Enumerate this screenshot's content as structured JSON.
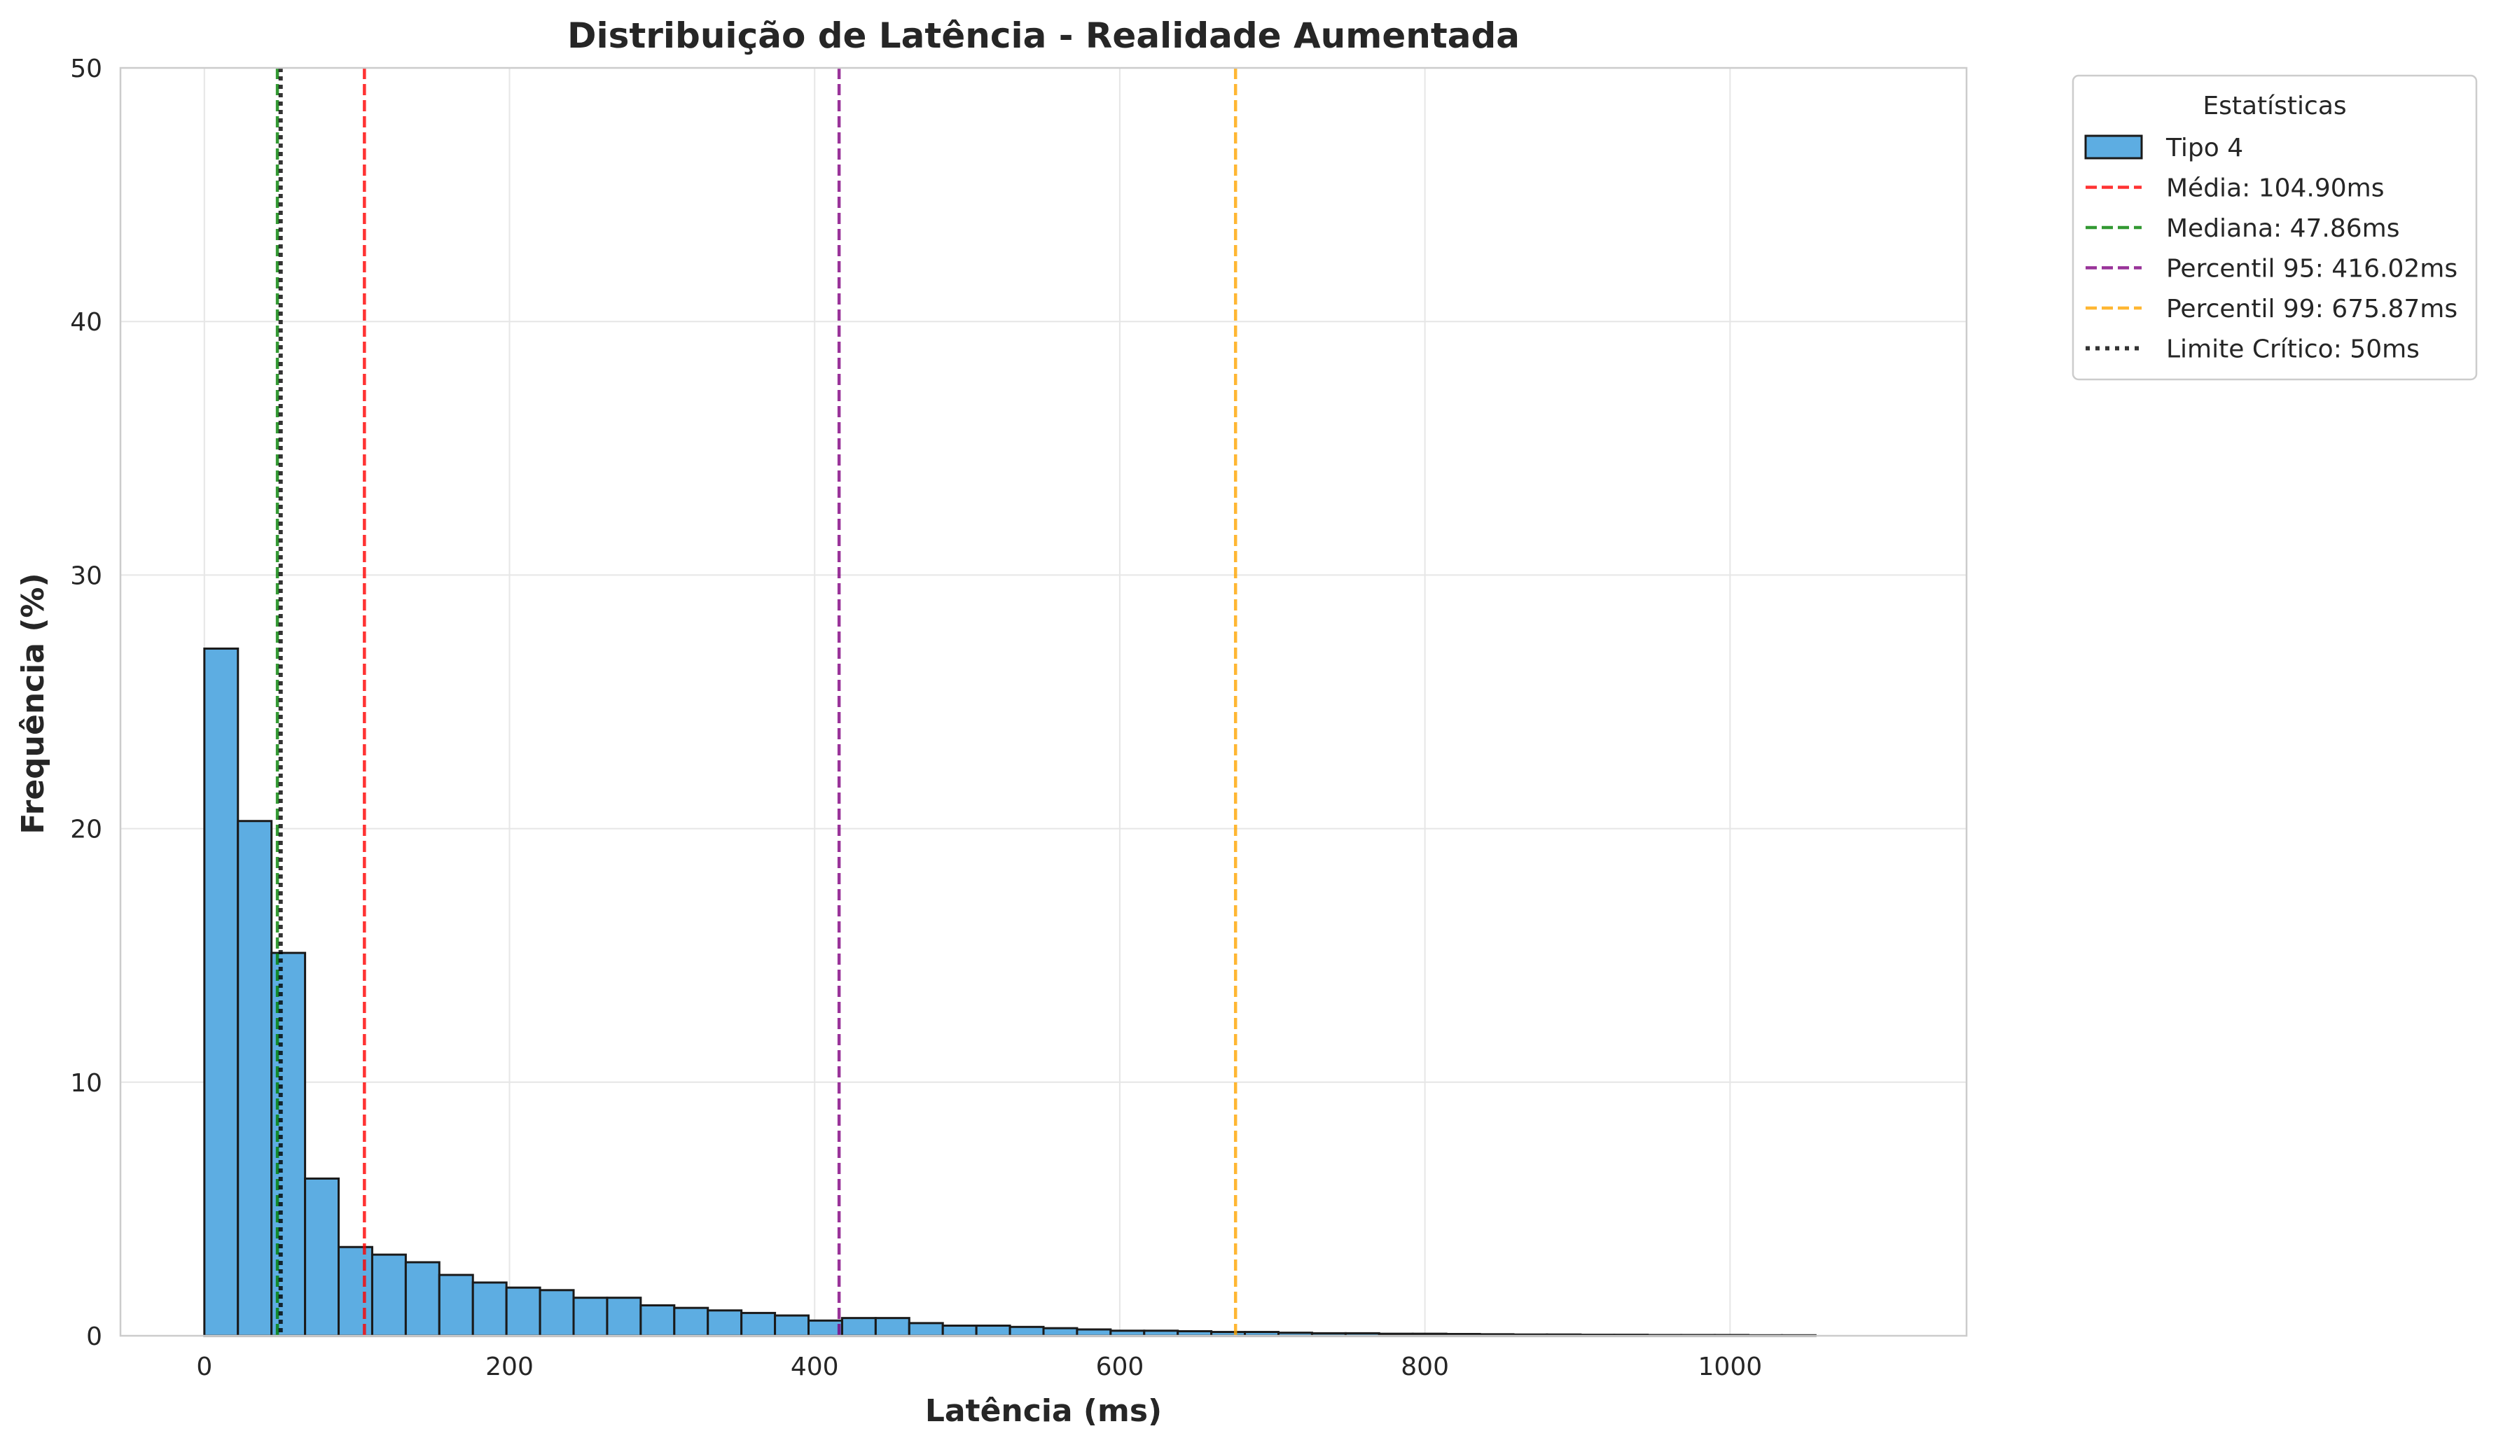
{
  "chart_data": {
    "type": "bar",
    "title": "Distribuição de Latência - Realidade Aumentada",
    "xlabel": "Latência (ms)",
    "ylabel": "Frequência (%)",
    "xlim": [
      -55,
      1155
    ],
    "ylim": [
      0,
      50
    ],
    "x_ticks": [
      0,
      200,
      400,
      600,
      800,
      1000
    ],
    "y_ticks": [
      0,
      10,
      20,
      30,
      40,
      50
    ],
    "grid": true,
    "bin_width": 22,
    "bin_start": 0,
    "series": [
      {
        "name": "Tipo 4",
        "color": "#5dade2",
        "values": [
          27.1,
          20.3,
          15.1,
          6.2,
          3.5,
          3.2,
          2.9,
          2.4,
          2.1,
          1.9,
          1.8,
          1.5,
          1.5,
          1.2,
          1.1,
          1.0,
          0.9,
          0.8,
          0.6,
          0.7,
          0.7,
          0.5,
          0.4,
          0.4,
          0.35,
          0.3,
          0.25,
          0.2,
          0.2,
          0.18,
          0.15,
          0.15,
          0.12,
          0.1,
          0.1,
          0.08,
          0.08,
          0.07,
          0.06,
          0.05,
          0.05,
          0.04,
          0.04,
          0.03,
          0.03,
          0.03,
          0.02,
          0.02
        ]
      }
    ],
    "lines": [
      {
        "label": "Média: 104.90ms",
        "x": 104.9,
        "color": "#ff0000",
        "style": "dashed"
      },
      {
        "label": "Mediana: 47.86ms",
        "x": 47.86,
        "color": "#008000",
        "style": "dashed"
      },
      {
        "label": "Percentil 95: 416.02ms",
        "x": 416.02,
        "color": "#800080",
        "style": "dashed"
      },
      {
        "label": "Percentil 99: 675.87ms",
        "x": 675.87,
        "color": "#ffa500",
        "style": "dashed"
      },
      {
        "label": "Limite Crítico: 50ms",
        "x": 50,
        "color": "#000000",
        "style": "dotted"
      }
    ],
    "legend": {
      "title": "Estatísticas",
      "placement": "outside-right-top"
    }
  }
}
